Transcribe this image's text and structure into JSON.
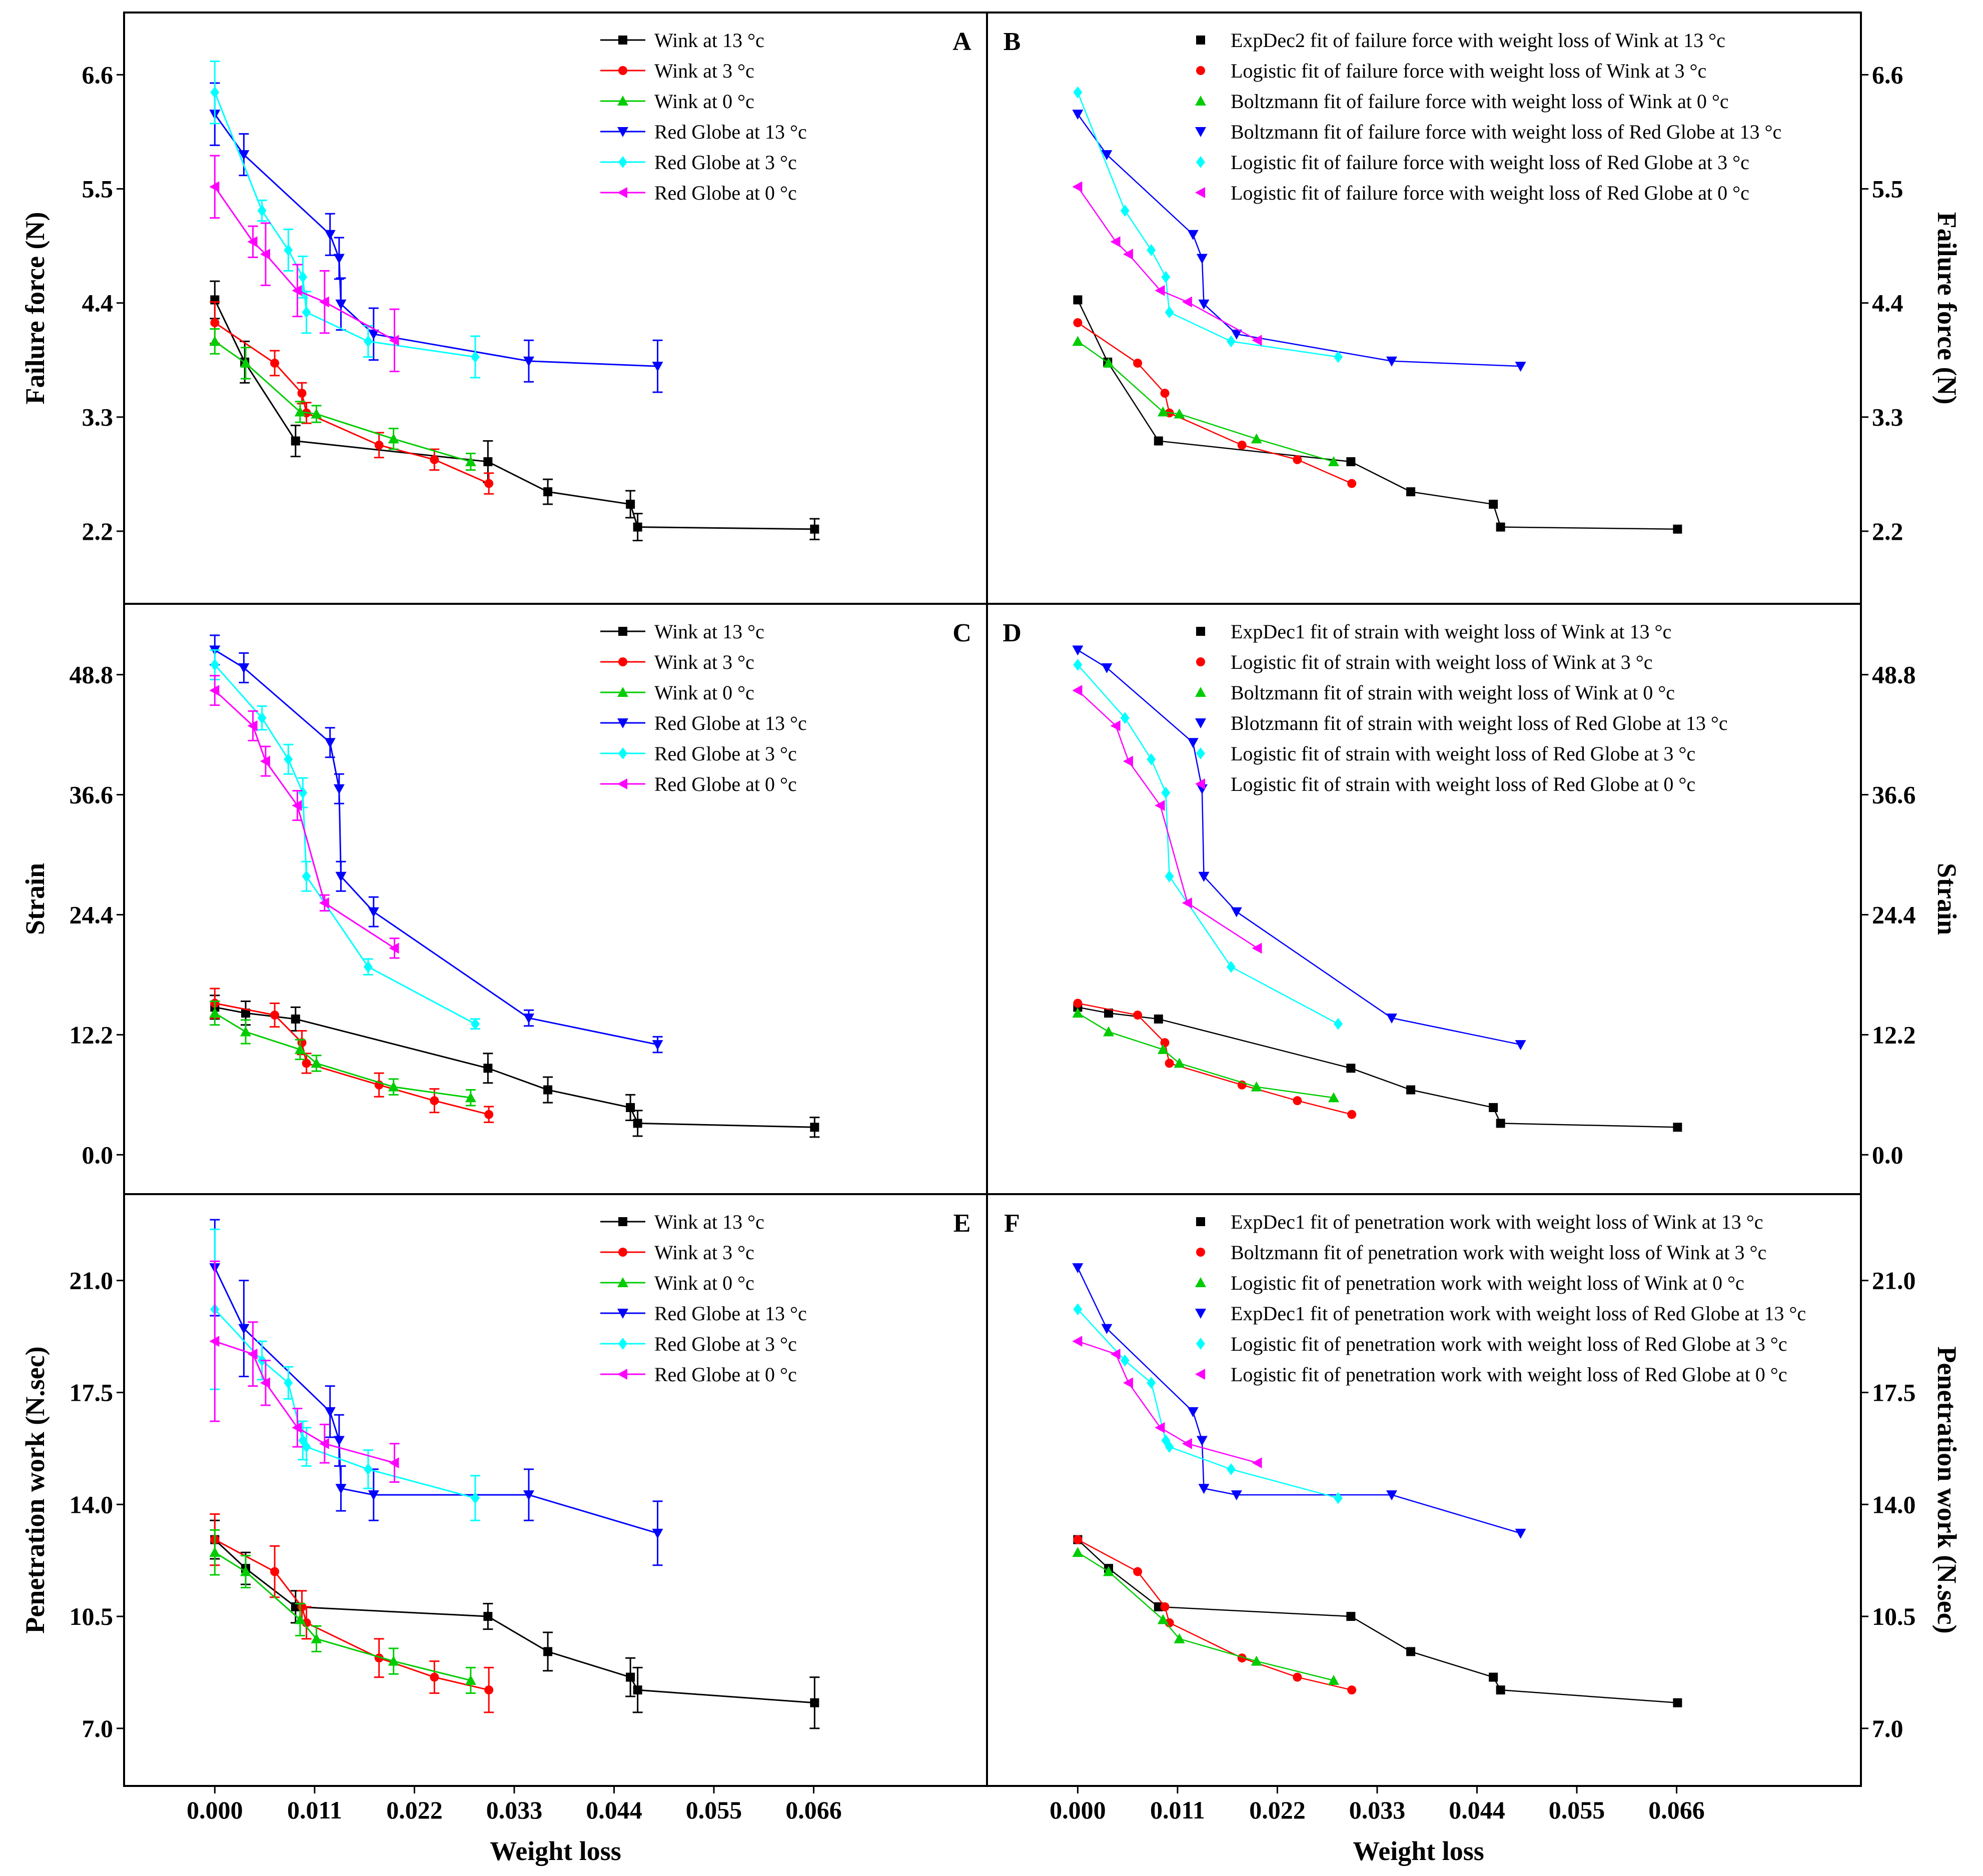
{
  "chart_data": {
    "type": "scatter",
    "layout": "3x2 grid of panels",
    "xlabel": "Weight loss",
    "x_ticks": [
      "0.000",
      "0.011",
      "0.022",
      "0.033",
      "0.044",
      "0.055",
      "0.066"
    ],
    "xlim": [
      -0.01,
      0.0851
    ],
    "colors": {
      "wink13": "#000000",
      "wink3": "#ff0000",
      "wink0": "#00cc00",
      "rg13": "#0000ff",
      "rg3": "#00ffff",
      "rg0": "#ff00ff"
    },
    "rows": [
      {
        "ylabel": "Failure force (N)",
        "ylim": [
          1.5,
          7.2
        ],
        "y_ticks": [
          "2.2",
          "3.3",
          "4.4",
          "5.5",
          "6.6"
        ],
        "left_panel": "A",
        "right_panel": "B",
        "left_legend": [
          "Wink at 13 °c",
          "Wink at 3 °c",
          "Wink at 0 °c",
          "Red Globe at 13 °c",
          "Red Globe at 3 °c",
          "Red Globe at 0 °c"
        ],
        "right_legend": [
          "ExpDec2 fit of failure force with weight loss of Wink at 13 °c",
          "Logistic fit of failure force with weight loss of Wink at 3 °c",
          "Boltzmann fit of failure force with weight loss of Wink at 0 °c",
          "Boltzmann fit of failure force with weight loss of Red Globe at 13 °c",
          "Logistic fit of failure force with weight loss of Red Globe at 3 °c",
          "Logistic  fit of failure force with weight loss of Red Globe at 0 °c"
        ],
        "series": [
          {
            "key": "wink13",
            "marker": "square",
            "x": [
              0,
              0.0033,
              0.0089,
              0.0301,
              0.0367,
              0.0458,
              0.0466,
              0.0661
            ],
            "y": [
              4.43,
              3.83,
              3.07,
              2.87,
              2.58,
              2.46,
              2.24,
              2.22
            ],
            "err": [
              0.18,
              0.2,
              0.15,
              0.2,
              0.12,
              0.13,
              0.13,
              0.1
            ]
          },
          {
            "key": "wink3",
            "marker": "circle",
            "x": [
              0,
              0.0066,
              0.0096,
              0.0101,
              0.0181,
              0.0242,
              0.0302
            ],
            "y": [
              4.21,
              3.82,
              3.53,
              3.34,
              3.03,
              2.89,
              2.66
            ],
            "err": [
              0.2,
              0.12,
              0.1,
              0.1,
              0.12,
              0.1,
              0.1
            ]
          },
          {
            "key": "wink0",
            "marker": "triangle-up",
            "x": [
              0,
              0.0034,
              0.0094,
              0.0112,
              0.0197,
              0.0282
            ],
            "y": [
              4.03,
              3.82,
              3.35,
              3.33,
              3.09,
              2.87
            ],
            "err": [
              0.12,
              0.15,
              0.1,
              0.08,
              0.1,
              0.08
            ]
          },
          {
            "key": "rg13",
            "marker": "triangle-down",
            "x": [
              0,
              0.0032,
              0.0127,
              0.0137,
              0.0139,
              0.0175,
              0.0346,
              0.0488
            ],
            "y": [
              6.22,
              5.83,
              5.06,
              4.83,
              4.39,
              4.1,
              3.84,
              3.79
            ],
            "err": [
              0.3,
              0.2,
              0.2,
              0.2,
              0.25,
              0.25,
              0.2,
              0.25
            ]
          },
          {
            "key": "rg3",
            "marker": "diamond",
            "x": [
              0,
              0.0052,
              0.0081,
              0.0097,
              0.0101,
              0.0169,
              0.0287
            ],
            "y": [
              6.43,
              5.29,
              4.91,
              4.65,
              4.31,
              4.03,
              3.88
            ],
            "err": [
              0.3,
              0.1,
              0.2,
              0.2,
              0.2,
              0.15,
              0.2
            ]
          },
          {
            "key": "rg0",
            "marker": "triangle-left",
            "x": [
              0,
              0.0042,
              0.0056,
              0.0091,
              0.0121,
              0.0198
            ],
            "y": [
              5.52,
              4.99,
              4.87,
              4.52,
              4.41,
              4.04
            ],
            "err": [
              0.3,
              0.15,
              0.3,
              0.25,
              0.3,
              0.3
            ]
          }
        ]
      },
      {
        "ylabel": "Strain",
        "ylim": [
          -4,
          56
        ],
        "y_ticks": [
          "0.0",
          "12.2",
          "24.4",
          "36.6",
          "48.8"
        ],
        "left_panel": "C",
        "right_panel": "D",
        "left_legend": [
          "Wink at 13 °c",
          "Wink at 3 °c",
          "Wink at 0 °c",
          "Red Globe at 13 °c",
          "Red Globe at 3 °c",
          "Red Globe at 0 °c"
        ],
        "right_legend": [
          "ExpDec1 fit of strain with weight loss of  Wink at 13 °c",
          "Logistic fit of  strain with weight loss of  Wink at 3 °c",
          "Boltzmann fit of  strain with weight loss of Wink at 0 °c",
          "Blotzmann fit of  strain with weight loss of Red Globe at 13 °c",
          "Logistic fit of  strain with weight loss of  Red Globe at 3 °c",
          "Logistic fit of strain with weight loss of Red Globe at 0 °c"
        ],
        "series": [
          {
            "key": "wink13",
            "marker": "square",
            "x": [
              0,
              0.0034,
              0.0089,
              0.0301,
              0.0367,
              0.0458,
              0.0466,
              0.0661
            ],
            "y": [
              15.0,
              14.4,
              13.8,
              8.8,
              6.6,
              4.8,
              3.2,
              2.8
            ],
            "err": [
              1.2,
              1.2,
              1.2,
              1.5,
              1.3,
              1.3,
              1.3,
              1.0
            ]
          },
          {
            "key": "wink3",
            "marker": "circle",
            "x": [
              0,
              0.0066,
              0.0096,
              0.0101,
              0.0181,
              0.0242,
              0.0302
            ],
            "y": [
              15.4,
              14.2,
              11.4,
              9.3,
              7.1,
              5.5,
              4.1
            ],
            "err": [
              1.5,
              1.2,
              1.2,
              1.0,
              1.2,
              1.2,
              0.8
            ]
          },
          {
            "key": "wink0",
            "marker": "triangle-up",
            "x": [
              0,
              0.0034,
              0.0094,
              0.0112,
              0.0197,
              0.0282
            ],
            "y": [
              14.4,
              12.5,
              10.7,
              9.3,
              6.9,
              5.8
            ],
            "err": [
              1.2,
              1.2,
              1.0,
              0.8,
              0.8,
              0.8
            ]
          },
          {
            "key": "rg13",
            "marker": "triangle-down",
            "x": [
              0,
              0.0032,
              0.0127,
              0.0137,
              0.0139,
              0.0175,
              0.0346,
              0.0488
            ],
            "y": [
              51.3,
              49.5,
              41.9,
              37.2,
              28.3,
              24.7,
              13.9,
              11.2
            ],
            "err": [
              1.5,
              1.5,
              1.5,
              1.5,
              1.5,
              1.5,
              0.8,
              0.8
            ]
          },
          {
            "key": "rg3",
            "marker": "diamond",
            "x": [
              0,
              0.0052,
              0.0081,
              0.0097,
              0.0101,
              0.0169,
              0.0287
            ],
            "y": [
              49.8,
              44.4,
              40.2,
              36.8,
              28.3,
              19.1,
              13.3
            ],
            "err": [
              1.5,
              1.2,
              1.5,
              1.5,
              1.5,
              0.8,
              0.5
            ]
          },
          {
            "key": "rg0",
            "marker": "triangle-left",
            "x": [
              0,
              0.0042,
              0.0056,
              0.0091,
              0.0121,
              0.0198
            ],
            "y": [
              47.2,
              43.6,
              40.0,
              35.5,
              25.6,
              21.0
            ],
            "err": [
              1.5,
              1.5,
              1.5,
              1.5,
              0.8,
              1.0
            ]
          }
        ]
      },
      {
        "ylabel": "Penetration work (N.sec)",
        "ylim": [
          5.2,
          23.7
        ],
        "y_ticks": [
          "7.0",
          "10.5",
          "14.0",
          "17.5",
          "21.0"
        ],
        "left_panel": "E",
        "right_panel": "F",
        "left_legend": [
          "Wink at 13 °c",
          "Wink at 3 °c",
          "Wink at 0 °c",
          "Red Globe at 13 °c",
          "Red Globe at 3 °c",
          "Red Globe at 0 °c"
        ],
        "right_legend": [
          "ExpDec1 fit of  penetration work with weight loss of Wink at 13 °c",
          "Boltzmann fit of penetration work with weight loss of  Wink at 3 °c",
          "Logistic fit of  penetration work with weight loss of  Wink at 0 °c",
          "ExpDec1 fit of  penetration work with weight loss of  Red Globe at 13 °c",
          "Logistic fit of  penetration work with weight loss of Red Globe at 3 °c",
          "Logistic fit of penetration work with weight loss of  Red Globe at 0 °c"
        ],
        "series": [
          {
            "key": "wink13",
            "marker": "square",
            "x": [
              0,
              0.0034,
              0.0089,
              0.0301,
              0.0367,
              0.0458,
              0.0466,
              0.0661
            ],
            "y": [
              12.9,
              12.0,
              10.8,
              10.5,
              9.4,
              8.6,
              8.2,
              7.8
            ],
            "err": [
              0.6,
              0.5,
              0.5,
              0.4,
              0.6,
              0.6,
              0.7,
              0.8
            ]
          },
          {
            "key": "wink3",
            "marker": "circle",
            "x": [
              0,
              0.0066,
              0.0096,
              0.0101,
              0.0181,
              0.0242,
              0.0302
            ],
            "y": [
              12.9,
              11.9,
              10.8,
              10.3,
              9.2,
              8.6,
              8.2
            ],
            "err": [
              0.8,
              0.8,
              0.5,
              0.5,
              0.6,
              0.5,
              0.7
            ]
          },
          {
            "key": "wink0",
            "marker": "triangle-up",
            "x": [
              0,
              0.0034,
              0.0094,
              0.0112,
              0.0197,
              0.0282
            ],
            "y": [
              12.5,
              11.9,
              10.4,
              9.8,
              9.1,
              8.5
            ],
            "err": [
              0.7,
              0.5,
              0.5,
              0.4,
              0.4,
              0.4
            ]
          },
          {
            "key": "rg13",
            "marker": "triangle-down",
            "x": [
              0,
              0.0032,
              0.0127,
              0.0137,
              0.0139,
              0.0175,
              0.0346,
              0.0488
            ],
            "y": [
              21.4,
              19.5,
              16.9,
              16.0,
              14.5,
              14.3,
              14.3,
              13.1
            ],
            "err": [
              1.5,
              1.5,
              0.8,
              0.8,
              0.7,
              0.8,
              0.8,
              1.0
            ]
          },
          {
            "key": "rg3",
            "marker": "diamond",
            "x": [
              0,
              0.0052,
              0.0081,
              0.0097,
              0.0101,
              0.0169,
              0.0287
            ],
            "y": [
              20.1,
              18.5,
              17.8,
              16.0,
              15.8,
              15.1,
              14.2
            ],
            "err": [
              2.5,
              0.6,
              0.5,
              0.6,
              0.6,
              0.6,
              0.7
            ]
          },
          {
            "key": "rg0",
            "marker": "triangle-left",
            "x": [
              0,
              0.0042,
              0.0056,
              0.0091,
              0.0121,
              0.0198
            ],
            "y": [
              19.1,
              18.7,
              17.8,
              16.4,
              15.9,
              15.3
            ],
            "err": [
              2.5,
              1.0,
              0.7,
              0.6,
              0.6,
              0.6
            ]
          }
        ]
      }
    ]
  }
}
